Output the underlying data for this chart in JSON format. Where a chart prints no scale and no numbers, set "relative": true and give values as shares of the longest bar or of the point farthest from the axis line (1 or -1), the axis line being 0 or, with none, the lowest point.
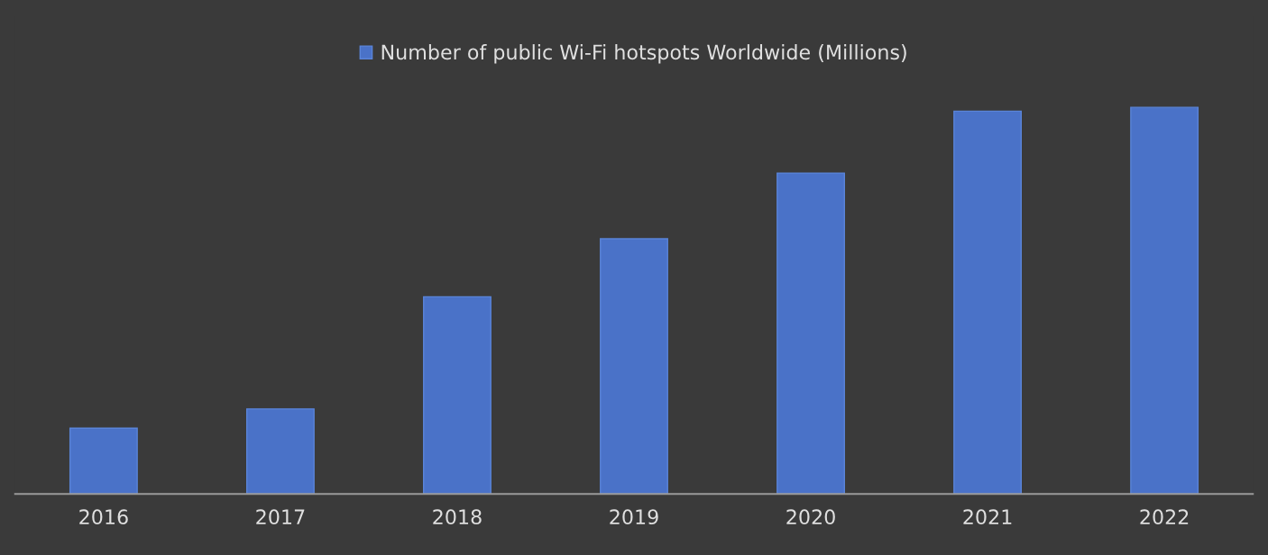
{
  "chart_data": {
    "type": "bar",
    "relative": true,
    "categories": [
      "2016",
      "2017",
      "2018",
      "2019",
      "2020",
      "2021",
      "2022"
    ],
    "series": [
      {
        "name": "Number of public Wi-Fi hotspots Worldwide (Millions)",
        "color": "#4a72c8",
        "values": [
          0.17,
          0.22,
          0.51,
          0.66,
          0.83,
          0.99,
          1.0
        ]
      }
    ],
    "legend": "top",
    "grid": false
  }
}
